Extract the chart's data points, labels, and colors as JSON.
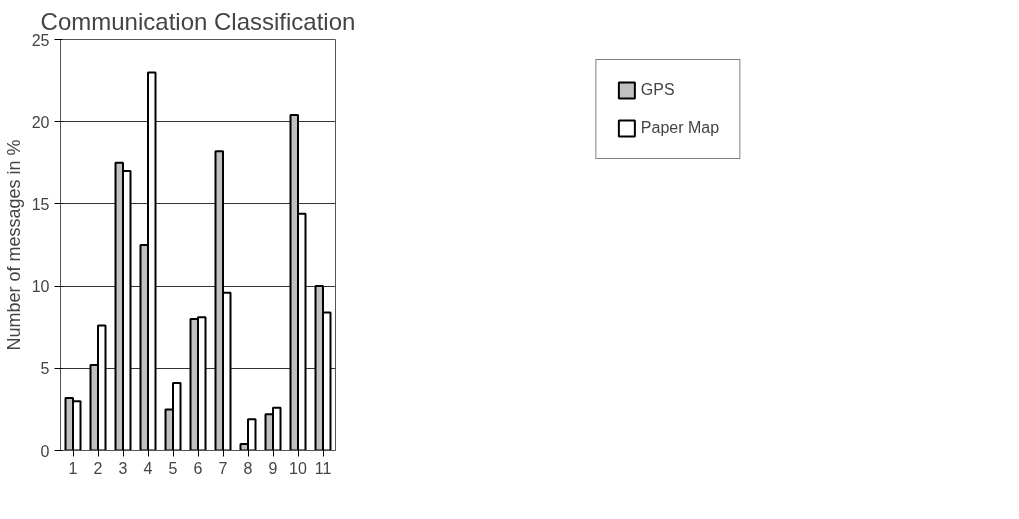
{
  "chart_data": {
    "type": "bar",
    "title": "Communication Classification",
    "ylabel": "Number of messages in %",
    "categories": [
      "1",
      "2",
      "3",
      "4",
      "5",
      "6",
      "7",
      "8",
      "9",
      "10",
      "11"
    ],
    "series": [
      {
        "name": "GPS",
        "color": "#c0c0c0",
        "values": [
          3.2,
          5.2,
          17.5,
          12.5,
          2.5,
          8.0,
          18.2,
          0.4,
          2.2,
          20.4,
          10.0
        ]
      },
      {
        "name": "Paper Map",
        "color": "#ffffff",
        "values": [
          3.0,
          7.6,
          17.0,
          23.0,
          4.1,
          8.1,
          9.6,
          1.9,
          2.6,
          14.4,
          8.4
        ]
      }
    ],
    "ylim": [
      0,
      25
    ],
    "yticks": [
      0,
      5,
      10,
      15,
      20,
      25
    ],
    "grid": "y",
    "legend": "right"
  }
}
